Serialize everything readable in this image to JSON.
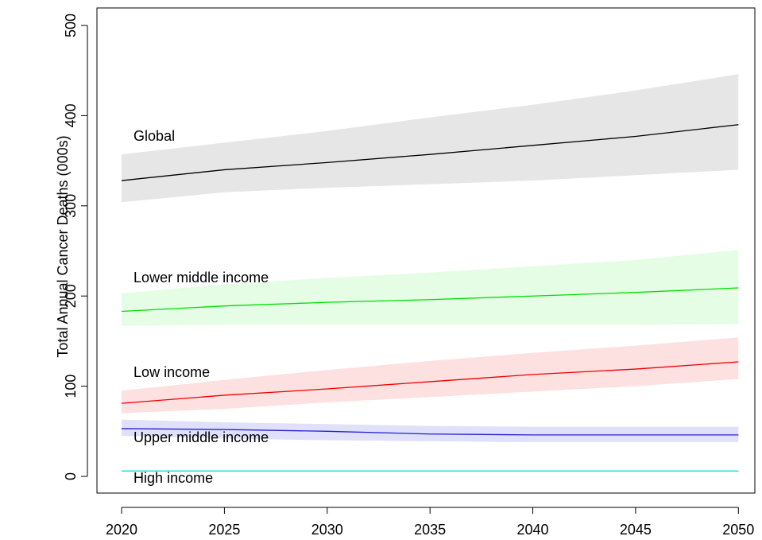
{
  "chart_data": {
    "type": "line",
    "y_label": "Total Annual Cancer Deaths (000s)",
    "x": [
      2020,
      2025,
      2030,
      2035,
      2040,
      2045,
      2050
    ],
    "xlim": [
      2018.8,
      2050.8
    ],
    "xticks": [
      2020,
      2025,
      2030,
      2035,
      2040,
      2045,
      2050
    ],
    "ylim": [
      -18.5,
      519.4
    ],
    "yticks": [
      0,
      100,
      200,
      300,
      400,
      500
    ],
    "series": [
      {
        "name": "Global",
        "color": "#000000",
        "band_color": "#e6e6e6",
        "values": [
          328,
          340,
          348,
          357,
          367,
          377,
          390
        ],
        "lower": [
          304,
          315,
          320,
          324,
          328,
          334,
          340
        ],
        "upper": [
          357,
          370,
          383,
          398,
          412,
          428,
          446
        ]
      },
      {
        "name": "Lower middle income",
        "color": "#00dd00",
        "band_color": "#e4fde4",
        "values": [
          183,
          189,
          193,
          196,
          200,
          204,
          209
        ],
        "lower": [
          167,
          168,
          168,
          168,
          168,
          168,
          169
        ],
        "upper": [
          203,
          213,
          220,
          226,
          233,
          240,
          251
        ]
      },
      {
        "name": "Low income",
        "color": "#ee0000",
        "band_color": "#fde0e0",
        "values": [
          81,
          90,
          97,
          105,
          113,
          119,
          127
        ],
        "lower": [
          70,
          75,
          82,
          88,
          94,
          100,
          108
        ],
        "upper": [
          95,
          107,
          118,
          128,
          137,
          145,
          154
        ]
      },
      {
        "name": "Upper middle income",
        "color": "#2222cc",
        "band_color": "#e0e0fa",
        "values": [
          53,
          52,
          50,
          47,
          46,
          46,
          46
        ],
        "lower": [
          45,
          42,
          40,
          39,
          38,
          38,
          38
        ],
        "upper": [
          63,
          60,
          58,
          56,
          55,
          55,
          55
        ]
      },
      {
        "name": "High income",
        "color": "#00e0e0",
        "band_color": "#dcfafa",
        "values": [
          6,
          6,
          6,
          6,
          6,
          6,
          6
        ],
        "lower": [
          5,
          5,
          5,
          5,
          5,
          5,
          5
        ],
        "upper": [
          7,
          7,
          7,
          7,
          7,
          7,
          7
        ]
      }
    ]
  }
}
